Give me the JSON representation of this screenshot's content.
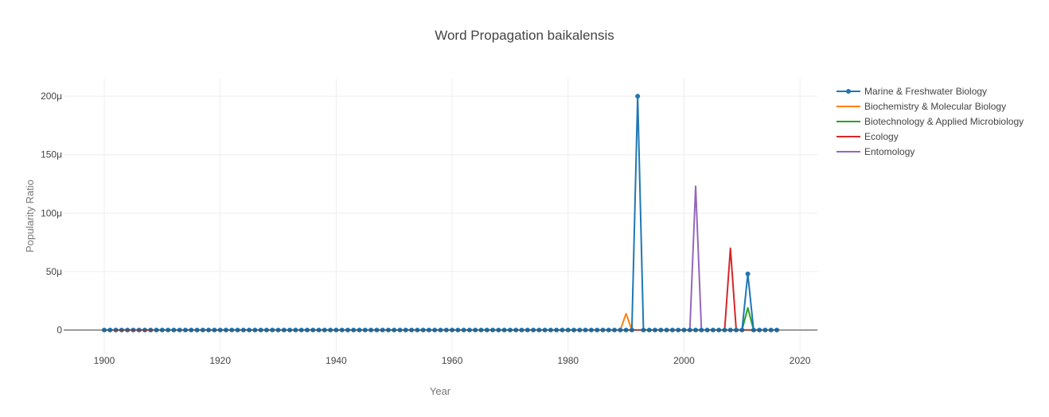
{
  "chart_data": {
    "type": "line",
    "title": "Word Propagation baikalensis",
    "xlabel": "Year",
    "ylabel": "Popularity Ratio",
    "xlim": [
      1893,
      2023
    ],
    "ylim": [
      -2e-05,
      0.000215
    ],
    "x_ticks": [
      1900,
      1920,
      1940,
      1960,
      1980,
      2000,
      2020
    ],
    "x_tick_labels": [
      "1900",
      "1920",
      "1940",
      "1960",
      "1980",
      "2000",
      "2020"
    ],
    "y_ticks": [
      0,
      5e-05,
      0.0001,
      0.00015,
      0.0002
    ],
    "y_tick_labels": [
      "0",
      "50μ",
      "100μ",
      "150μ",
      "200μ"
    ],
    "grid": true,
    "legend_position": "right",
    "series": [
      {
        "name": "Marine & Freshwater Biology",
        "color": "#1f77b4",
        "markers": true,
        "x_range": [
          1900,
          2016
        ],
        "points": [
          [
            1992,
            0.0002
          ],
          [
            2011,
            4.8e-05
          ]
        ]
      },
      {
        "name": "Biochemistry & Molecular Biology",
        "color": "#ff7f0e",
        "markers": false,
        "points": [
          [
            1989,
            0
          ],
          [
            1990,
            1.4e-05
          ],
          [
            1991,
            0
          ]
        ]
      },
      {
        "name": "Biotechnology & Applied Microbiology",
        "color": "#2ca02c",
        "markers": false,
        "points": [
          [
            2010,
            0
          ],
          [
            2011,
            1.9e-05
          ],
          [
            2012,
            0
          ]
        ]
      },
      {
        "name": "Ecology",
        "color": "#d62728",
        "markers": false,
        "points": [
          [
            1900,
            0
          ],
          [
            1910,
            0
          ],
          [
            2001,
            0
          ],
          [
            2007,
            0
          ],
          [
            2008,
            7e-05
          ],
          [
            2009,
            0
          ],
          [
            2016,
            0
          ]
        ]
      },
      {
        "name": "Entomology",
        "color": "#9467bd",
        "markers": false,
        "points": [
          [
            2001,
            0
          ],
          [
            2002,
            0.000123
          ],
          [
            2003,
            0
          ]
        ]
      }
    ]
  }
}
